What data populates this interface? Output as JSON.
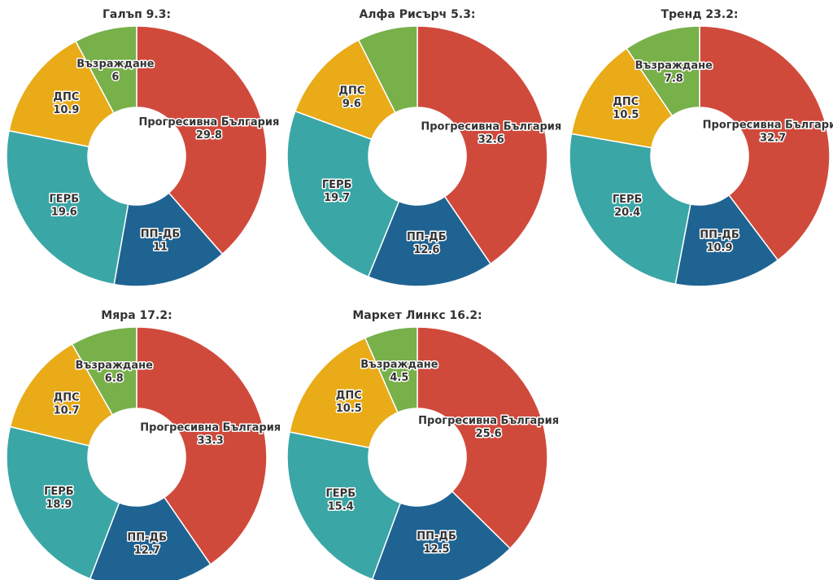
{
  "chart_data": [
    {
      "type": "pie",
      "title": "Галъп 9.3:",
      "categories": [
        "Прогресивна България",
        "ПП-ДБ",
        "ГЕРБ",
        "ДПС",
        "Възраждане"
      ],
      "values": [
        29.8,
        11,
        19.6,
        10.9,
        6
      ],
      "colors": [
        "#d04a3c",
        "#1f6392",
        "#3ba6a6",
        "#e9ab17",
        "#78b04a"
      ]
    },
    {
      "type": "pie",
      "title": "Алфа Рисърч 5.3:",
      "categories": [
        "Прогресивна България",
        "ПП-ДБ",
        "ГЕРБ",
        "ДПС",
        null
      ],
      "values": [
        32.6,
        12.6,
        19.7,
        9.6,
        6
      ],
      "colors": [
        "#d04a3c",
        "#1f6392",
        "#3ba6a6",
        "#e9ab17",
        "#78b04a"
      ]
    },
    {
      "type": "pie",
      "title": "Тренд 23.2:",
      "categories": [
        "Прогресивна България",
        "ПП-ДБ",
        "ГЕРБ",
        "ДПС",
        "Възраждане"
      ],
      "values": [
        32.7,
        10.9,
        20.4,
        10.5,
        7.8
      ],
      "colors": [
        "#d04a3c",
        "#1f6392",
        "#3ba6a6",
        "#e9ab17",
        "#78b04a"
      ]
    },
    {
      "type": "pie",
      "title": "Мяра 17.2:",
      "categories": [
        "Прогресивна България",
        "ПП-ДБ",
        "ГЕРБ",
        "ДПС",
        "Възраждане"
      ],
      "values": [
        33.3,
        12.7,
        18.9,
        10.7,
        6.8
      ],
      "colors": [
        "#d04a3c",
        "#1f6392",
        "#3ba6a6",
        "#e9ab17",
        "#78b04a"
      ]
    },
    {
      "type": "pie",
      "title": "Маркет Линкс 16.2:",
      "categories": [
        "Прогресивна България",
        "ПП-ДБ",
        "ГЕРБ",
        "ДПС",
        "Възраждане"
      ],
      "values": [
        25.6,
        12.5,
        15.4,
        10.5,
        4.5
      ],
      "colors": [
        "#d04a3c",
        "#1f6392",
        "#3ba6a6",
        "#e9ab17",
        "#78b04a"
      ]
    }
  ]
}
